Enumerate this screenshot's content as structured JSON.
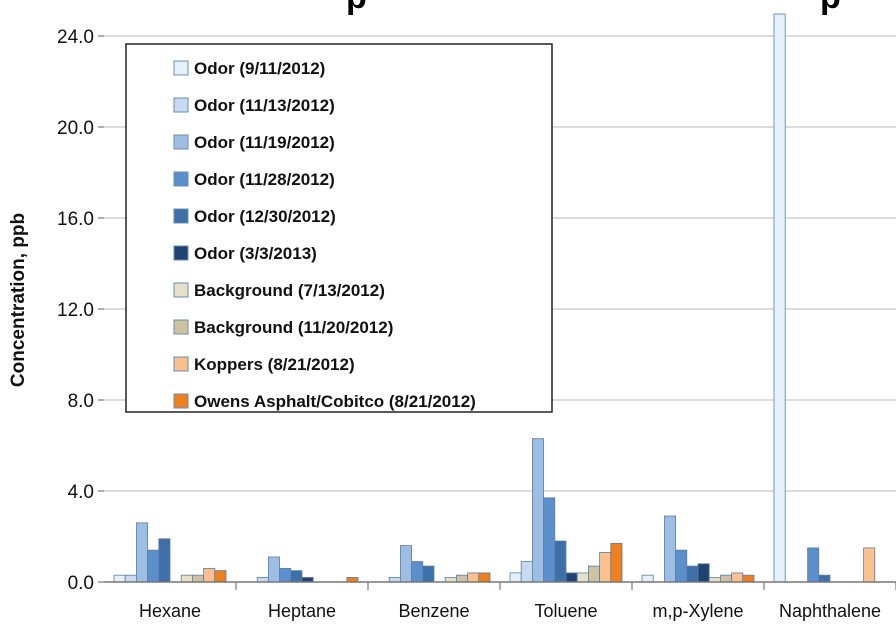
{
  "chart_data": {
    "type": "bar",
    "title_visible_fragments": [
      "p",
      "p"
    ],
    "ylabel": "Concentration, ppb",
    "xlabel": "",
    "ylim": [
      0,
      24.0
    ],
    "yticks": [
      "0.0",
      "4.0",
      "8.0",
      "12.0",
      "16.0",
      "20.0",
      "24.0"
    ],
    "categories": [
      "Hexane",
      "Heptane",
      "Benzene",
      "Toluene",
      "m,p-Xylene",
      "Naphthalene"
    ],
    "grid": true,
    "legend_position": "top-left",
    "series": [
      {
        "name": "Odor (9/11/2012)",
        "color": "#e6f0fa",
        "values": [
          0.3,
          0.0,
          0.0,
          0.4,
          0.3,
          25.0
        ]
      },
      {
        "name": "Odor (11/13/2012)",
        "color": "#c7daef",
        "values": [
          0.3,
          0.2,
          0.2,
          0.9,
          0.0,
          0.0
        ]
      },
      {
        "name": "Odor (11/19/2012)",
        "color": "#9dbde3",
        "values": [
          2.6,
          1.1,
          1.6,
          6.3,
          2.9,
          0.0
        ]
      },
      {
        "name": "Odor (11/28/2012)",
        "color": "#5b8fcc",
        "values": [
          1.4,
          0.6,
          0.9,
          3.7,
          1.4,
          1.5
        ]
      },
      {
        "name": "Odor (12/30/2012)",
        "color": "#3f6fa8",
        "values": [
          1.9,
          0.5,
          0.7,
          1.8,
          0.7,
          0.3
        ]
      },
      {
        "name": "Odor (3/3/2013)",
        "color": "#1f4373",
        "values": [
          0.0,
          0.2,
          0.0,
          0.4,
          0.8,
          0.0
        ]
      },
      {
        "name": "Background (7/13/2012)",
        "color": "#e5e0c8",
        "values": [
          0.3,
          0.0,
          0.2,
          0.4,
          0.2,
          0.0
        ]
      },
      {
        "name": "Background (11/20/2012)",
        "color": "#cdc3a3",
        "values": [
          0.3,
          0.0,
          0.3,
          0.7,
          0.3,
          0.0
        ]
      },
      {
        "name": "Koppers (8/21/2012)",
        "color": "#fbc08e",
        "values": [
          0.6,
          0.0,
          0.4,
          1.3,
          0.4,
          1.5
        ]
      },
      {
        "name": "Owens Asphalt/Cobitco (8/21/2012)",
        "color": "#f07f1e",
        "values": [
          0.5,
          0.2,
          0.4,
          1.7,
          0.3,
          0.0
        ]
      }
    ]
  }
}
